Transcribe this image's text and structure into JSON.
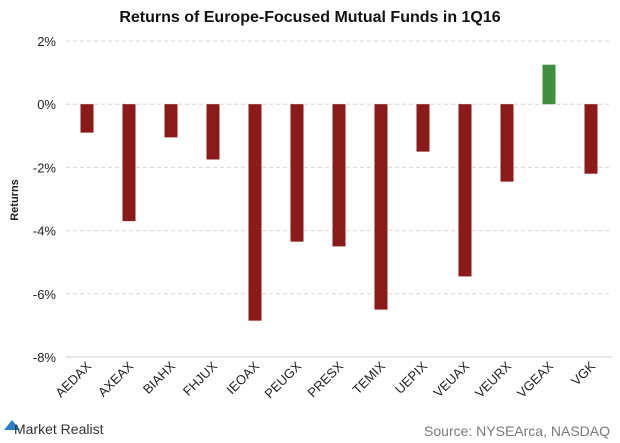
{
  "colors": {
    "negative": "#8b1a1a",
    "positive": "#3f8f3f",
    "grid": "#d6d6d6",
    "logo_accent": "#2a7fc8"
  },
  "chart_data": {
    "type": "bar",
    "title": "Returns of Europe-Focused Mutual Funds in 1Q16",
    "xlabel": "",
    "ylabel": "Returns",
    "ylim": [
      -8,
      2
    ],
    "y_ticks": [
      "2%",
      "0%",
      "-2%",
      "-4%",
      "-6%",
      "-8%"
    ],
    "grid": true,
    "categories": [
      "AEDAX",
      "AXEAX",
      "BIAHX",
      "FHJUX",
      "IEOAX",
      "PEUGX",
      "PRESX",
      "TEMIX",
      "UEPIX",
      "VEUAX",
      "VEURX",
      "VGEAX",
      "VGK"
    ],
    "values": [
      -0.9,
      -3.7,
      -1.05,
      -1.75,
      -6.85,
      -4.35,
      -4.5,
      -6.5,
      -1.5,
      -5.45,
      -2.45,
      1.25,
      -2.2
    ]
  },
  "footer": {
    "brand": "Market Realist",
    "source": "Source: NYSEArca, NASDAQ"
  }
}
